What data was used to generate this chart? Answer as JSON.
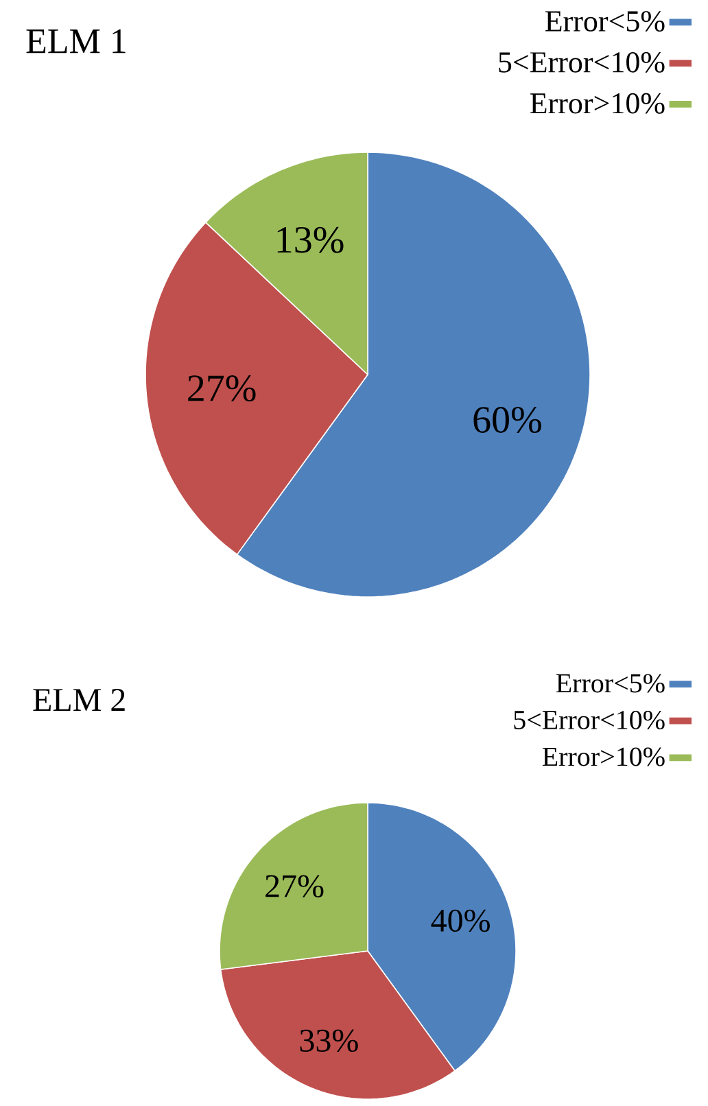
{
  "chart_data": [
    {
      "type": "pie",
      "title": "ELM 1",
      "categories": [
        "Error<5%",
        "5<Error<10%",
        "Error>10%"
      ],
      "values": [
        60,
        27,
        13
      ],
      "colors": [
        "#4f81bd",
        "#c0504d",
        "#9bbb59"
      ],
      "value_labels": [
        "60%",
        "27%",
        "13%"
      ],
      "legend": "top right"
    },
    {
      "type": "pie",
      "title": "ELM 2",
      "categories": [
        "Error<5%",
        "5<Error<10%",
        "Error>10%"
      ],
      "values": [
        40,
        33,
        27
      ],
      "colors": [
        "#4f81bd",
        "#c0504d",
        "#9bbb59"
      ],
      "value_labels": [
        "40%",
        "33%",
        "27%"
      ],
      "legend": "top right"
    }
  ]
}
